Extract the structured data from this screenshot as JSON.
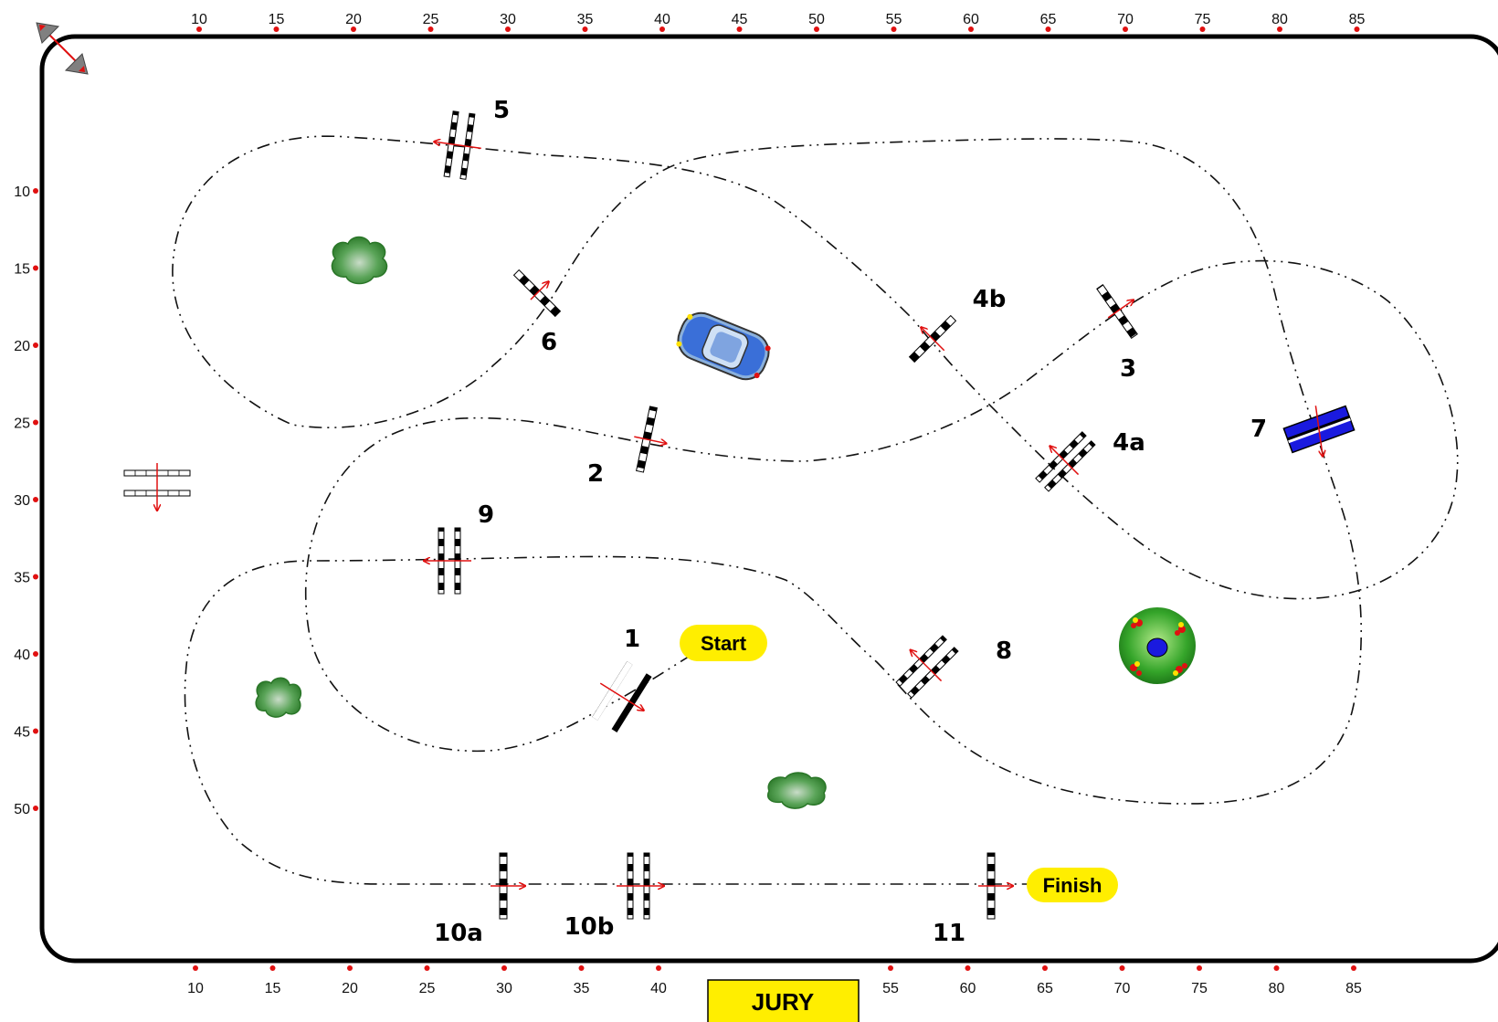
{
  "ruler": {
    "top": [
      "10",
      "15",
      "20",
      "25",
      "30",
      "35",
      "40",
      "45",
      "50",
      "55",
      "60",
      "65",
      "70",
      "75",
      "80",
      "85"
    ],
    "bottom_left": [
      "10",
      "15",
      "20",
      "25",
      "30",
      "35",
      "40"
    ],
    "bottom_right": [
      "55",
      "60",
      "65",
      "70",
      "75",
      "80",
      "85"
    ],
    "left": [
      "10",
      "15",
      "20",
      "25",
      "30",
      "35",
      "40",
      "45",
      "50"
    ]
  },
  "obstacles": {
    "o1": "1",
    "o2": "2",
    "o3": "3",
    "o4a": "4a",
    "o4b": "4b",
    "o5": "5",
    "o6": "6",
    "o7": "7",
    "o8": "8",
    "o9": "9",
    "o10a": "10a",
    "o10b": "10b",
    "o11": "11"
  },
  "start_label": "Start",
  "finish_label": "Finish",
  "jury_label": "JURY",
  "colors": {
    "arena_border": "#000000",
    "route": "#111111",
    "tick": "#e01010",
    "start_pill": "#ffee00",
    "jury_box": "#ffee00",
    "water_jump": "#1a1adf",
    "bush": "#4a9a48",
    "car": "#3a6fd8"
  },
  "icons": {
    "arena_arrow": "double-arrow-icon",
    "car": "car-icon",
    "bush": "bush-icon",
    "flowerbed": "flower-bed-icon",
    "gate_direction": "red-arrow-icon"
  }
}
